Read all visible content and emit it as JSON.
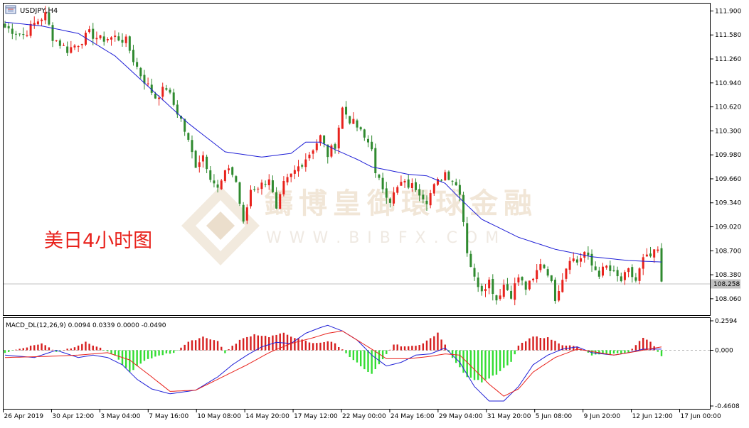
{
  "header": {
    "symbol_label": "USDJPY,H4",
    "chart_icon": "chart-window-icon"
  },
  "overlay_label": "美日4小时图",
  "watermark": {
    "cn": "鑄博皇御環球金融",
    "url": "W W W . B I B F X . C O M"
  },
  "colors": {
    "bull": "#e8221c",
    "bear": "#2f8a2f",
    "ma": "#1f1fd6",
    "macd_line": "#1f1fd6",
    "signal_line": "#e8221c",
    "hist_pos": "#d62020",
    "hist_neg": "#33dd33",
    "label": "#e8221c",
    "price_line": "#c0c0c0"
  },
  "chart_data": {
    "type": "candlestick",
    "symbol": "USDJPY",
    "timeframe": "H4",
    "ylim": [
      107.86,
      111.98
    ],
    "y_ticks": [
      "111.900",
      "111.580",
      "111.260",
      "110.940",
      "110.620",
      "110.300",
      "109.980",
      "109.660",
      "109.340",
      "109.020",
      "108.700",
      "108.380",
      "108.060"
    ],
    "current_price": "108.258",
    "x_ticks": [
      "26 Apr 2019",
      "30 Apr 12:00",
      "3 May 04:00",
      "7 May 16:00",
      "10 May 08:00",
      "14 May 20:00",
      "17 May 12:00",
      "22 May 00:00",
      "24 May 16:00",
      "29 May 04:00",
      "31 May 20:00",
      "5 Jun 08:00",
      "9 Jun 20:00",
      "12 Jun 12:00",
      "17 Jun 00:00"
    ],
    "close_path": [
      [
        0,
        111.68
      ],
      [
        5,
        111.58
      ],
      [
        8,
        111.73
      ],
      [
        11,
        111.85
      ],
      [
        13,
        111.55
      ],
      [
        17,
        111.38
      ],
      [
        20,
        111.47
      ],
      [
        23,
        111.6
      ],
      [
        26,
        111.52
      ],
      [
        30,
        111.55
      ],
      [
        33,
        111.5
      ],
      [
        35,
        111.25
      ],
      [
        37,
        111.05
      ],
      [
        39,
        110.9
      ],
      [
        41,
        110.75
      ],
      [
        44,
        110.88
      ],
      [
        46,
        110.65
      ],
      [
        48,
        110.45
      ],
      [
        50,
        110.15
      ],
      [
        52,
        109.85
      ],
      [
        54,
        109.98
      ],
      [
        56,
        109.7
      ],
      [
        58,
        109.52
      ],
      [
        61,
        109.82
      ],
      [
        63,
        109.62
      ],
      [
        65,
        109.05
      ],
      [
        67,
        109.52
      ],
      [
        70,
        109.58
      ],
      [
        72,
        109.68
      ],
      [
        74,
        109.22
      ],
      [
        76,
        109.58
      ],
      [
        78,
        109.7
      ],
      [
        80,
        109.82
      ],
      [
        83,
        110.0
      ],
      [
        86,
        110.22
      ],
      [
        88,
        109.98
      ],
      [
        90,
        110.12
      ],
      [
        92,
        110.6
      ],
      [
        94,
        110.45
      ],
      [
        96,
        110.35
      ],
      [
        98,
        110.2
      ],
      [
        100,
        110.1
      ],
      [
        101,
        109.7
      ],
      [
        103,
        109.55
      ],
      [
        105,
        109.38
      ],
      [
        108,
        109.6
      ],
      [
        112,
        109.55
      ],
      [
        115,
        109.38
      ],
      [
        117,
        109.55
      ],
      [
        120,
        109.75
      ],
      [
        122,
        109.65
      ],
      [
        124,
        109.5
      ],
      [
        126,
        108.7
      ],
      [
        128,
        108.32
      ],
      [
        130,
        108.2
      ],
      [
        132,
        108.3
      ],
      [
        134,
        108.05
      ],
      [
        136,
        108.25
      ],
      [
        138,
        108.12
      ],
      [
        140,
        108.35
      ],
      [
        142,
        108.2
      ],
      [
        144,
        108.3
      ],
      [
        146,
        108.55
      ],
      [
        148,
        108.42
      ],
      [
        150,
        108.08
      ],
      [
        152,
        108.35
      ],
      [
        154,
        108.62
      ],
      [
        156,
        108.55
      ],
      [
        158,
        108.68
      ],
      [
        160,
        108.5
      ],
      [
        162,
        108.4
      ],
      [
        164,
        108.48
      ],
      [
        166,
        108.38
      ],
      [
        168,
        108.3
      ],
      [
        170,
        108.42
      ],
      [
        172,
        108.3
      ],
      [
        174,
        108.58
      ],
      [
        176,
        108.62
      ],
      [
        178,
        108.7
      ],
      [
        179,
        108.25
      ]
    ],
    "ma_path": [
      [
        0,
        111.75
      ],
      [
        10,
        111.7
      ],
      [
        20,
        111.6
      ],
      [
        30,
        111.3
      ],
      [
        40,
        110.85
      ],
      [
        50,
        110.4
      ],
      [
        60,
        110.02
      ],
      [
        70,
        109.95
      ],
      [
        78,
        110.0
      ],
      [
        82,
        110.15
      ],
      [
        86,
        110.15
      ],
      [
        90,
        110.05
      ],
      [
        96,
        109.92
      ],
      [
        100,
        109.82
      ],
      [
        110,
        109.72
      ],
      [
        115,
        109.7
      ],
      [
        120,
        109.6
      ],
      [
        124,
        109.4
      ],
      [
        130,
        109.12
      ],
      [
        140,
        108.88
      ],
      [
        150,
        108.72
      ],
      [
        160,
        108.62
      ],
      [
        170,
        108.57
      ],
      [
        179,
        108.55
      ]
    ],
    "macd_indicator": {
      "label": "MACD_DL(12,26,9) 0.0094 0.0339 0.0000 -0.0490",
      "y_ticks": [
        "0.2594",
        "0.000",
        "-0.4608"
      ],
      "ylim": [
        -0.4608,
        0.2594
      ],
      "macd_path": [
        [
          0,
          -0.04
        ],
        [
          8,
          -0.06
        ],
        [
          14,
          0.0
        ],
        [
          20,
          -0.06
        ],
        [
          24,
          -0.04
        ],
        [
          28,
          -0.06
        ],
        [
          32,
          -0.12
        ],
        [
          36,
          -0.24
        ],
        [
          40,
          -0.32
        ],
        [
          45,
          -0.36
        ],
        [
          52,
          -0.33
        ],
        [
          58,
          -0.22
        ],
        [
          62,
          -0.12
        ],
        [
          66,
          -0.04
        ],
        [
          70,
          0.03
        ],
        [
          74,
          0.07
        ],
        [
          78,
          0.06
        ],
        [
          82,
          0.15
        ],
        [
          86,
          0.2
        ],
        [
          88,
          0.22
        ],
        [
          92,
          0.17
        ],
        [
          96,
          0.09
        ],
        [
          100,
          -0.04
        ],
        [
          104,
          -0.13
        ],
        [
          108,
          -0.1
        ],
        [
          112,
          -0.04
        ],
        [
          116,
          -0.03
        ],
        [
          120,
          0.02
        ],
        [
          124,
          -0.1
        ],
        [
          128,
          -0.3
        ],
        [
          132,
          -0.42
        ],
        [
          136,
          -0.42
        ],
        [
          140,
          -0.3
        ],
        [
          144,
          -0.12
        ],
        [
          148,
          -0.04
        ],
        [
          152,
          0.01
        ],
        [
          156,
          0.03
        ],
        [
          160,
          -0.02
        ],
        [
          166,
          -0.04
        ],
        [
          170,
          -0.02
        ],
        [
          174,
          0.01
        ],
        [
          179,
          0.01
        ]
      ],
      "signal_path": [
        [
          0,
          -0.06
        ],
        [
          12,
          -0.05
        ],
        [
          20,
          -0.04
        ],
        [
          28,
          -0.02
        ],
        [
          34,
          -0.08
        ],
        [
          40,
          -0.22
        ],
        [
          45,
          -0.34
        ],
        [
          52,
          -0.33
        ],
        [
          60,
          -0.21
        ],
        [
          66,
          -0.12
        ],
        [
          72,
          -0.02
        ],
        [
          78,
          0.06
        ],
        [
          84,
          0.11
        ],
        [
          88,
          0.15
        ],
        [
          92,
          0.17
        ],
        [
          96,
          0.09
        ],
        [
          100,
          0.01
        ],
        [
          104,
          -0.07
        ],
        [
          110,
          -0.07
        ],
        [
          116,
          -0.05
        ],
        [
          120,
          -0.03
        ],
        [
          124,
          -0.04
        ],
        [
          128,
          -0.16
        ],
        [
          132,
          -0.28
        ],
        [
          136,
          -0.38
        ],
        [
          140,
          -0.32
        ],
        [
          144,
          -0.18
        ],
        [
          150,
          -0.06
        ],
        [
          156,
          0.01
        ],
        [
          160,
          -0.01
        ],
        [
          166,
          -0.04
        ],
        [
          172,
          -0.01
        ],
        [
          179,
          0.03
        ]
      ],
      "hist_path": [
        [
          0,
          -0.02
        ],
        [
          6,
          0.03
        ],
        [
          10,
          0.06
        ],
        [
          14,
          -0.01
        ],
        [
          18,
          0.02
        ],
        [
          22,
          0.07
        ],
        [
          26,
          0.02
        ],
        [
          30,
          -0.05
        ],
        [
          34,
          -0.18
        ],
        [
          38,
          -0.09
        ],
        [
          42,
          -0.04
        ],
        [
          46,
          -0.02
        ],
        [
          50,
          0.07
        ],
        [
          54,
          0.12
        ],
        [
          58,
          0.08
        ],
        [
          60,
          -0.02
        ],
        [
          64,
          0.09
        ],
        [
          68,
          0.14
        ],
        [
          72,
          0.12
        ],
        [
          76,
          0.15
        ],
        [
          80,
          0.1
        ],
        [
          84,
          0.06
        ],
        [
          88,
          0.08
        ],
        [
          90,
          0.06
        ],
        [
          94,
          -0.05
        ],
        [
          98,
          -0.16
        ],
        [
          100,
          -0.2
        ],
        [
          102,
          -0.12
        ],
        [
          106,
          0.05
        ],
        [
          110,
          0.03
        ],
        [
          114,
          0.06
        ],
        [
          118,
          0.15
        ],
        [
          122,
          -0.06
        ],
        [
          126,
          -0.22
        ],
        [
          130,
          -0.26
        ],
        [
          134,
          -0.2
        ],
        [
          138,
          -0.1
        ],
        [
          140,
          0.04
        ],
        [
          144,
          0.12
        ],
        [
          148,
          0.11
        ],
        [
          152,
          0.05
        ],
        [
          156,
          0.03
        ],
        [
          160,
          -0.04
        ],
        [
          166,
          -0.03
        ],
        [
          170,
          -0.02
        ],
        [
          174,
          0.11
        ],
        [
          176,
          0.08
        ],
        [
          179,
          -0.05
        ]
      ]
    }
  }
}
